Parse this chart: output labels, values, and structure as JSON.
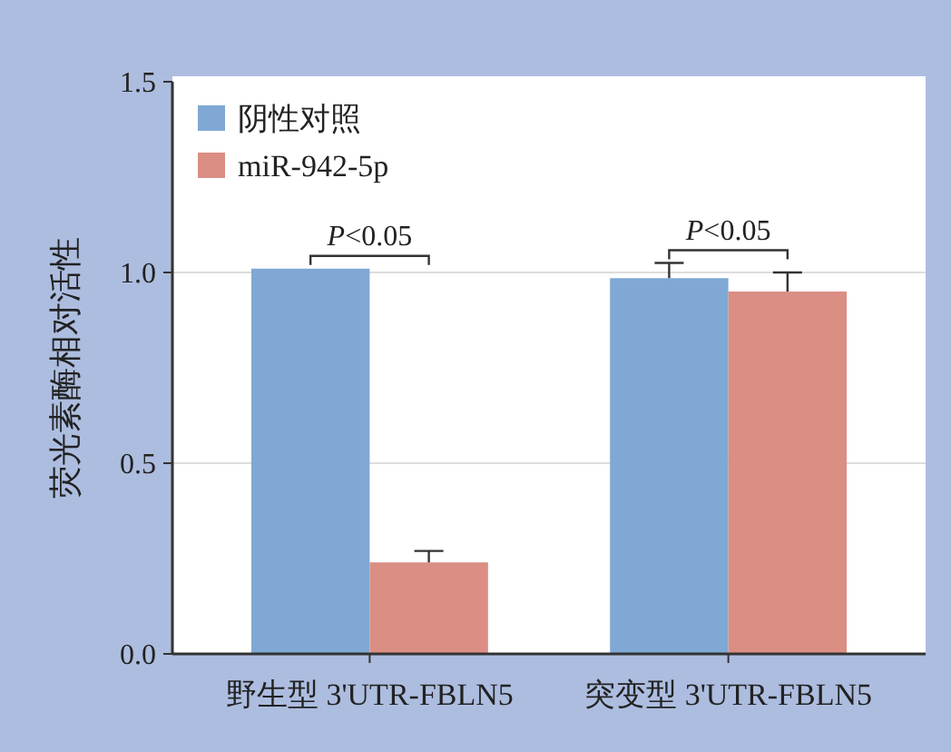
{
  "chart_data": {
    "type": "bar",
    "ylabel": "荧光素酶相对活性",
    "categories": [
      "野生型 3'UTR-FBLN5",
      "突变型 3'UTR-FBLN5"
    ],
    "series": [
      {
        "name": "阴性对照",
        "color": "#7fa8d4",
        "values": [
          1.01,
          0.985
        ],
        "errors": [
          null,
          [
            0.985,
            1.025
          ]
        ]
      },
      {
        "name": "miR-942-5p",
        "color": "#db8e84",
        "values": [
          0.24,
          0.95
        ],
        "errors": [
          [
            0.24,
            0.27
          ],
          [
            0.95,
            1.0
          ]
        ]
      }
    ],
    "ylim": [
      0,
      1.5
    ],
    "yticks": [
      {
        "value": 0,
        "label": "0.0"
      },
      0.5,
      {
        "value": 1,
        "label": "1.0"
      },
      1.5
    ],
    "grid": "y",
    "legend": "top left",
    "annotations": [
      "P<0.05",
      "P<0.05"
    ]
  }
}
